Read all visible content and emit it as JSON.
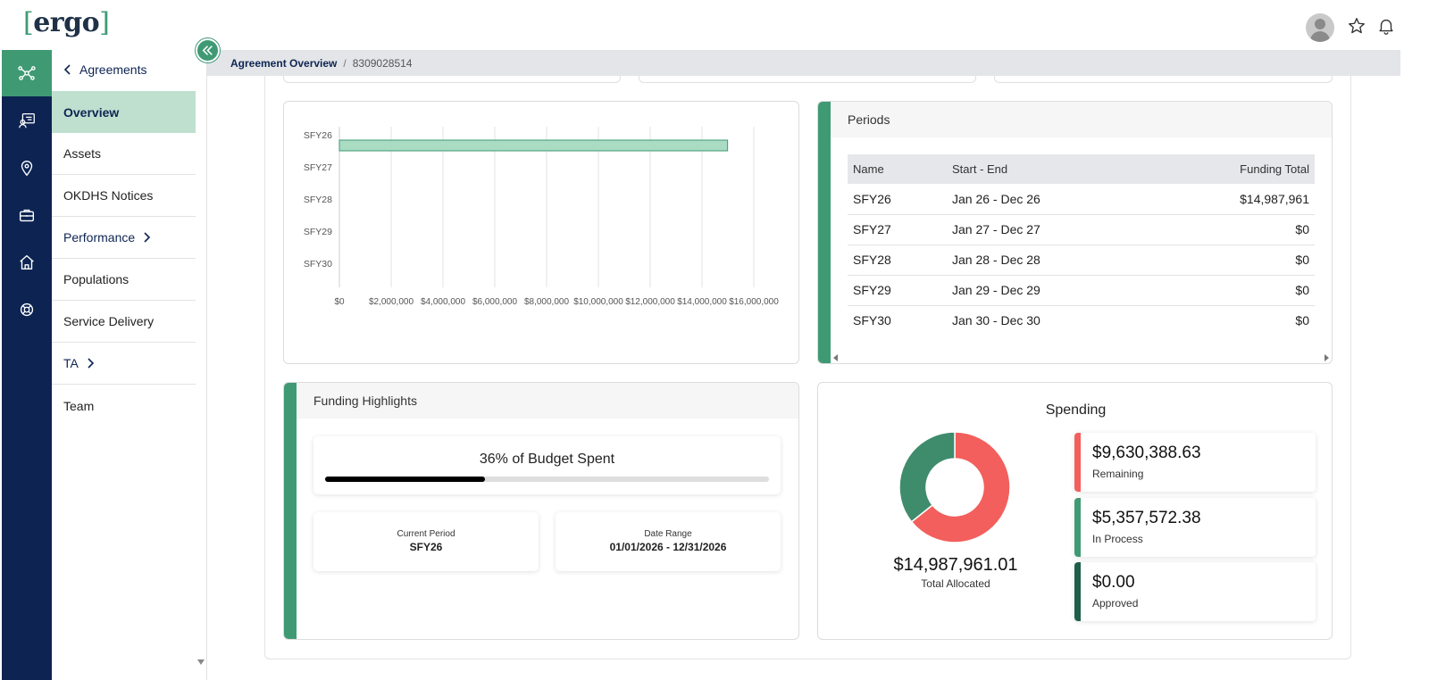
{
  "app": {
    "logo_text": "ergo",
    "logo_bracket_open": "[",
    "logo_bracket_close": "]"
  },
  "header": {
    "icons": [
      "avatar",
      "star-icon",
      "bell-icon"
    ]
  },
  "icon_rail": {
    "items": [
      "network-icon",
      "id-card-icon",
      "map-pin-icon",
      "briefcase-icon",
      "home-icon",
      "support-icon"
    ],
    "active_index": 0
  },
  "subnav": {
    "back_label": "Agreements",
    "items": [
      {
        "label": "Overview",
        "active": true
      },
      {
        "label": "Assets"
      },
      {
        "label": "OKDHS Notices"
      },
      {
        "label": "Performance",
        "has_chevron": true
      },
      {
        "label": "Populations"
      },
      {
        "label": "Service Delivery"
      },
      {
        "label": "TA",
        "has_chevron": true
      },
      {
        "label": "Team"
      }
    ]
  },
  "breadcrumb": {
    "parent": "Agreement Overview",
    "separator": "/",
    "current": "8309028514"
  },
  "chart_data": {
    "type": "bar",
    "orientation": "horizontal",
    "categories": [
      "SFY26",
      "SFY27",
      "SFY28",
      "SFY29",
      "SFY30"
    ],
    "values": [
      14987961,
      0,
      0,
      0,
      0
    ],
    "xlim": [
      0,
      16000000
    ],
    "xticks": [
      0,
      2000000,
      4000000,
      6000000,
      8000000,
      10000000,
      12000000,
      14000000,
      16000000
    ],
    "xtick_labels": [
      "$0",
      "$2,000,000",
      "$4,000,000",
      "$6,000,000",
      "$8,000,000",
      "$10,000,000",
      "$12,000,000",
      "$14,000,000",
      "$16,000,000"
    ],
    "grid": true,
    "bar_color": "#a9dcc2",
    "bar_edge_color": "#3f9a74"
  },
  "periods": {
    "title": "Periods",
    "columns": [
      "Name",
      "Start - End",
      "Funding Total"
    ],
    "rows": [
      {
        "name": "SFY26",
        "range": "Jan 26 - Dec 26",
        "total": "$14,987,961"
      },
      {
        "name": "SFY27",
        "range": "Jan 27 - Dec 27",
        "total": "$0"
      },
      {
        "name": "SFY28",
        "range": "Jan 28 - Dec 28",
        "total": "$0"
      },
      {
        "name": "SFY29",
        "range": "Jan 29 - Dec 29",
        "total": "$0"
      },
      {
        "name": "SFY30",
        "range": "Jan 30 - Dec 30",
        "total": "$0"
      }
    ]
  },
  "funding": {
    "title": "Funding Highlights",
    "budget_label": "36% of Budget Spent",
    "budget_fraction": 0.36,
    "current_period_label": "Current Period",
    "current_period_value": "SFY26",
    "date_range_label": "Date Range",
    "date_range_value": "01/01/2026 - 12/31/2026"
  },
  "spending": {
    "title": "Spending",
    "total_amount": "$14,987,961.01",
    "total_label": "Total Allocated",
    "donut": [
      {
        "name": "Remaining",
        "value": 9630388.63,
        "color": "#f25f5c"
      },
      {
        "name": "In Process",
        "value": 5357572.38,
        "color": "#3f8c6c"
      },
      {
        "name": "Approved",
        "value": 0,
        "color": "#1f5f4a"
      }
    ],
    "boxes": [
      {
        "amount": "$9,630,388.63",
        "label": "Remaining",
        "color": "#f25f5c"
      },
      {
        "amount": "$5,357,572.38",
        "label": "In Process",
        "color": "#3f9a74"
      },
      {
        "amount": "$0.00",
        "label": "Approved",
        "color": "#1f5f4a"
      }
    ]
  },
  "colors": {
    "accent": "#3f9a74",
    "navy": "#0d2452",
    "active_nav_bg": "#bfe0cf"
  }
}
